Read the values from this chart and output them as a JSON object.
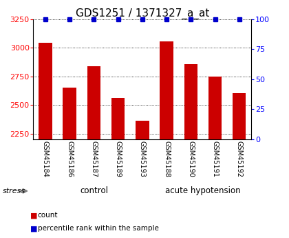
{
  "title": "GDS1251 / 1371327_a_at",
  "samples": [
    "GSM45184",
    "GSM45186",
    "GSM45187",
    "GSM45189",
    "GSM45193",
    "GSM45188",
    "GSM45190",
    "GSM45191",
    "GSM45192"
  ],
  "counts": [
    3040,
    2650,
    2840,
    2560,
    2360,
    3055,
    2855,
    2750,
    2600
  ],
  "percentiles": [
    100,
    100,
    100,
    100,
    100,
    100,
    100,
    100,
    100
  ],
  "group_split": 5,
  "bar_color": "#cc0000",
  "pct_color": "#0000cc",
  "ylim_left": [
    2200,
    3250
  ],
  "ylim_right": [
    0,
    100
  ],
  "yticks_left": [
    2250,
    2500,
    2750,
    3000,
    3250
  ],
  "yticks_right": [
    0,
    25,
    50,
    75,
    100
  ],
  "plot_bg": "#ffffff",
  "control_color": "#ccffcc",
  "acute_color": "#55cc55",
  "label_bg": "#c8c8c8",
  "title_fontsize": 11,
  "tick_fontsize": 8,
  "bar_width": 0.55
}
